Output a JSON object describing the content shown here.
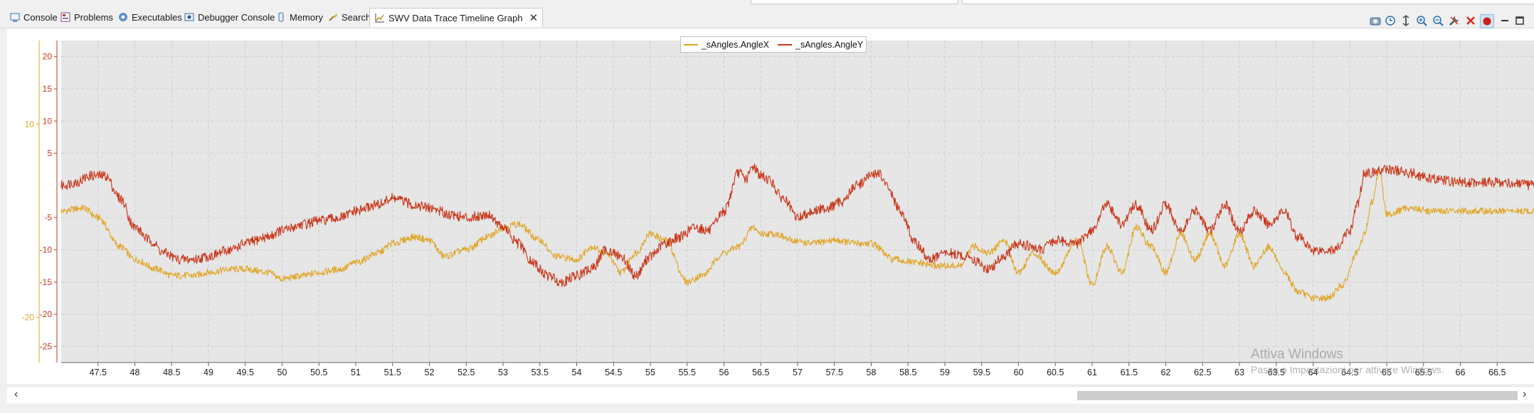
{
  "tabs": [
    {
      "id": "console",
      "label": "Console",
      "icon": "console-icon"
    },
    {
      "id": "problems",
      "label": "Problems",
      "icon": "problems-icon"
    },
    {
      "id": "executables",
      "label": "Executables",
      "icon": "executables-icon"
    },
    {
      "id": "debugger-console",
      "label": "Debugger Console",
      "icon": "debugger-console-icon"
    },
    {
      "id": "memory",
      "label": "Memory",
      "icon": "memory-icon"
    },
    {
      "id": "search",
      "label": "Search",
      "icon": "search-icon"
    },
    {
      "id": "swv",
      "label": "SWV Data Trace Timeline Graph",
      "icon": "graph-icon",
      "active": true
    }
  ],
  "toolbar_icons": [
    "configure-trace-icon",
    "timestamp-icon",
    "adjust-y-axis-icon",
    "zoom-in-icon",
    "zoom-out-icon",
    "settings-wrench-icon",
    "clear-icon",
    "record-icon",
    "minimize-icon",
    "maximize-icon"
  ],
  "colors": {
    "angle_x": "#e0a526",
    "angle_y": "#c8361a",
    "plot_bg": "#e6e6e6",
    "grid": "#cfcfcf"
  },
  "watermark": {
    "line1": "Attiva Windows",
    "line2": "Passa a Impostazioni per attivare Windows."
  },
  "chart_data": {
    "type": "line",
    "title": "",
    "xlabel": "",
    "legend_position": "top-center",
    "grid": true,
    "x_range": [
      47.0,
      67.0
    ],
    "x_ticks": [
      "47.5",
      "48",
      "48.5",
      "49",
      "49.5",
      "50",
      "50.5",
      "51",
      "51.5",
      "52",
      "52.5",
      "53",
      "53.5",
      "54",
      "54.5",
      "55",
      "55.5",
      "56",
      "56.5",
      "57",
      "57.5",
      "58",
      "58.5",
      "59",
      "59.5",
      "60",
      "60.5",
      "61",
      "61.5",
      "62",
      "62.5",
      "63",
      "63.5",
      "64",
      "64.5",
      "65",
      "65.5",
      "66",
      "66.5"
    ],
    "y_axes": [
      {
        "name": "_sAngles.AngleY",
        "range": [
          -27.5,
          22.5
        ],
        "ticks": [
          "20",
          "15",
          "10",
          "5",
          "-5",
          "-10",
          "-15",
          "-20",
          "-25"
        ]
      },
      {
        "name": "_sAngles.AngleX",
        "range": [
          -27,
          23
        ],
        "ticks": [
          "10",
          "-20"
        ]
      }
    ],
    "series": [
      {
        "name": "_sAngles.AngleX",
        "axis": 1,
        "color": "#e0a526",
        "x": [
          47.0,
          47.3,
          47.5,
          47.8,
          48.0,
          48.3,
          48.5,
          48.8,
          49.0,
          49.3,
          49.5,
          49.8,
          50.0,
          50.3,
          50.5,
          50.8,
          51.0,
          51.3,
          51.5,
          51.8,
          52.0,
          52.2,
          52.5,
          52.8,
          53.0,
          53.2,
          53.5,
          53.7,
          54.0,
          54.2,
          54.4,
          54.6,
          54.8,
          55.0,
          55.2,
          55.5,
          55.7,
          56.0,
          56.2,
          56.4,
          56.5,
          56.7,
          56.9,
          57.2,
          57.5,
          57.8,
          58.0,
          58.3,
          58.6,
          58.9,
          59.2,
          59.4,
          59.6,
          59.8,
          60.0,
          60.2,
          60.5,
          60.8,
          61.0,
          61.2,
          61.4,
          61.6,
          61.8,
          62.0,
          62.2,
          62.4,
          62.6,
          62.8,
          63.0,
          63.2,
          63.4,
          63.6,
          63.8,
          64.0,
          64.2,
          64.4,
          64.6,
          64.7,
          64.8,
          64.9,
          65.0,
          65.3,
          65.6,
          66.0,
          66.5,
          67.0
        ],
        "y": [
          -3.5,
          -3,
          -4.5,
          -9,
          -11,
          -12.5,
          -13.5,
          -13.5,
          -13,
          -12.5,
          -12.5,
          -13,
          -14,
          -13.5,
          -13,
          -12.5,
          -11.5,
          -10,
          -8.5,
          -7.5,
          -8,
          -10.5,
          -9.5,
          -7.5,
          -6,
          -5.5,
          -8,
          -10.5,
          -11,
          -9,
          -10,
          -13,
          -10,
          -7,
          -8,
          -14.5,
          -13.5,
          -10,
          -9,
          -6,
          -7,
          -7,
          -8,
          -8.5,
          -8,
          -8.5,
          -8.5,
          -11,
          -11.5,
          -12,
          -12,
          -9,
          -10,
          -8,
          -13,
          -10,
          -13,
          -8,
          -15,
          -9,
          -13,
          -6,
          -9,
          -13,
          -7,
          -11,
          -7,
          -12,
          -7,
          -12,
          -9,
          -13,
          -16,
          -17,
          -17,
          -15,
          -10,
          -7,
          -2,
          3,
          -4,
          -3,
          -3.5,
          -3.5,
          -3.5,
          -3.5
        ]
      },
      {
        "name": "_sAngles.AngleY",
        "axis": 0,
        "color": "#c8361a",
        "x": [
          47.0,
          47.2,
          47.4,
          47.6,
          47.8,
          48.0,
          48.2,
          48.4,
          48.6,
          48.8,
          49.0,
          49.3,
          49.5,
          49.8,
          50.0,
          50.3,
          50.5,
          50.8,
          51.0,
          51.3,
          51.5,
          51.8,
          52.0,
          52.3,
          52.5,
          52.8,
          53.0,
          53.2,
          53.4,
          53.6,
          53.8,
          54.0,
          54.2,
          54.4,
          54.6,
          54.8,
          55.0,
          55.2,
          55.4,
          55.6,
          55.8,
          56.0,
          56.2,
          56.3,
          56.4,
          56.5,
          56.6,
          56.8,
          57.0,
          57.2,
          57.4,
          57.6,
          57.8,
          58.0,
          58.1,
          58.2,
          58.4,
          58.6,
          58.8,
          59.0,
          59.3,
          59.6,
          59.8,
          60.0,
          60.3,
          60.5,
          60.8,
          61.0,
          61.2,
          61.4,
          61.6,
          61.8,
          62.0,
          62.2,
          62.4,
          62.6,
          62.8,
          63.0,
          63.2,
          63.4,
          63.6,
          63.8,
          64.0,
          64.3,
          64.5,
          64.6,
          64.7,
          64.8,
          65.0,
          65.3,
          65.6,
          66.0,
          66.5,
          67.0
        ],
        "y": [
          0,
          0.5,
          1.5,
          1.5,
          -2,
          -6.5,
          -8.5,
          -10.5,
          -11.5,
          -11.5,
          -11,
          -10,
          -9,
          -8,
          -7,
          -6,
          -5.5,
          -5,
          -4,
          -3,
          -2,
          -3,
          -3.5,
          -4.5,
          -5,
          -4.5,
          -6.5,
          -9,
          -12,
          -14,
          -15,
          -14,
          -13,
          -10,
          -11,
          -14,
          -11,
          -9,
          -8,
          -6.5,
          -7,
          -4,
          2,
          1,
          3,
          1.5,
          1,
          -2,
          -5,
          -4,
          -3.5,
          -2.5,
          0,
          1.5,
          2,
          0,
          -4,
          -9,
          -11.5,
          -10.5,
          -11,
          -13,
          -11,
          -9,
          -10,
          -8.5,
          -9,
          -7,
          -3,
          -6,
          -3,
          -7,
          -3,
          -7,
          -4,
          -7,
          -3,
          -7,
          -4,
          -6,
          -4,
          -8,
          -10,
          -10,
          -7,
          -3,
          2,
          2,
          2.5,
          2,
          1,
          0.5,
          0.5,
          0
        ]
      }
    ]
  }
}
